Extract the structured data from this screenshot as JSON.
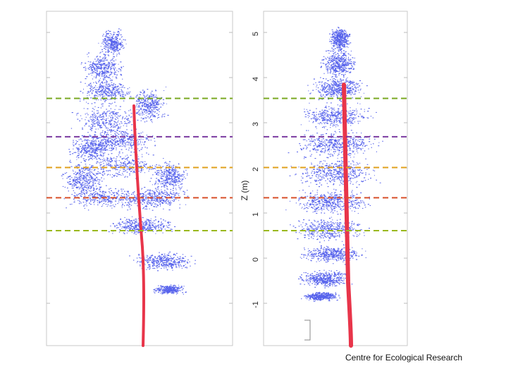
{
  "figure": {
    "credit": "Centre for Ecological Research",
    "ylabel": "Z (m)",
    "y_ticks": [
      "5",
      "4",
      "3",
      "2",
      "1",
      "0",
      "-1"
    ],
    "colors": {
      "points": "#1f2fe6",
      "stem": "#e8354a",
      "line_top": "#7aa822",
      "line_purple": "#7a3aa0",
      "line_orange": "#e0a01e",
      "line_red": "#d8502a",
      "line_bottom": "#9ab81c",
      "frame": "#c8c8c8"
    },
    "layer_heights_m": [
      3.55,
      2.7,
      2.02,
      1.35,
      0.62
    ],
    "y_range_m": [
      -1.9,
      5.5
    ]
  }
}
